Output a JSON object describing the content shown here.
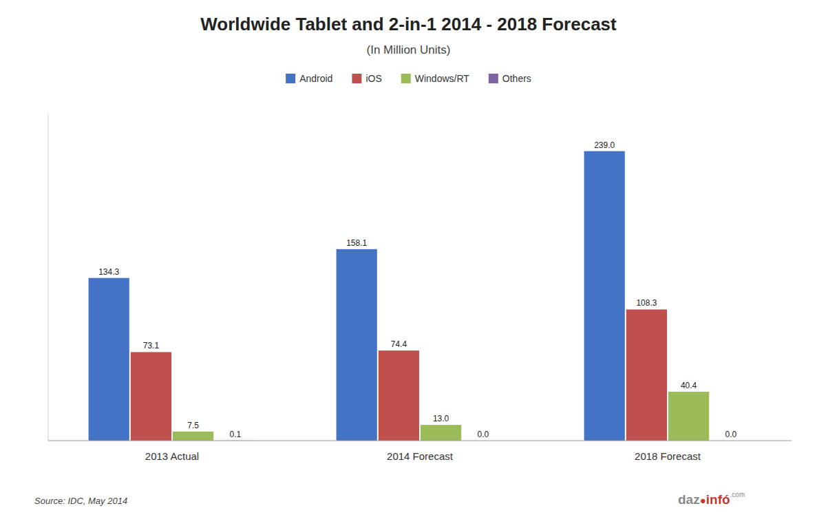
{
  "chart_data": {
    "type": "bar",
    "title": "Worldwide Tablet and 2-in-1 2014 - 2018 Forecast",
    "subtitle": "(In Million Units)",
    "categories": [
      "2013 Actual",
      "2014 Forecast",
      "2018 Forecast"
    ],
    "series": [
      {
        "name": "Android",
        "color": "#4472C4",
        "values": [
          134.3,
          158.1,
          239.0
        ],
        "value_labels": [
          "134.3",
          "158.1",
          "239.0"
        ]
      },
      {
        "name": "iOS",
        "color": "#C0504D",
        "values": [
          73.1,
          74.4,
          108.3
        ],
        "value_labels": [
          "73.1",
          "74.4",
          "108.3"
        ]
      },
      {
        "name": "Windows/RT",
        "color": "#9BBB59",
        "values": [
          7.5,
          13.0,
          40.4
        ],
        "value_labels": [
          "7.5",
          "13.0",
          "40.4"
        ]
      },
      {
        "name": "Others",
        "color": "#8064A2",
        "values": [
          0.1,
          0.0,
          0.0
        ],
        "value_labels": [
          "0.1",
          "0.0",
          "0.0"
        ]
      }
    ],
    "ylim": [
      0,
      270
    ],
    "grid": false,
    "legend": "top",
    "data_labels": true,
    "tick_labels": "x",
    "annotations": [
      "Source: IDC, May 2014",
      "daz",
      "●",
      "infó",
      ".com"
    ]
  }
}
